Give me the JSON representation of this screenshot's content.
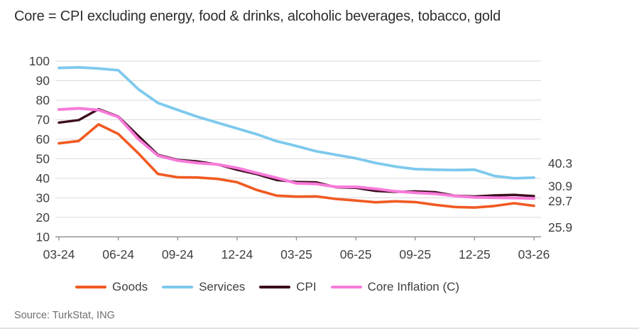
{
  "header": {
    "title": "Core = CPI excluding energy, food & drinks, alcoholic beverages, tobacco, gold"
  },
  "source": {
    "text": "Source: TurkStat, ING"
  },
  "colors": {
    "goods": "#f05a22",
    "services": "#7ec9ed",
    "cpi": "#3c0d1f",
    "core": "#f87bd9",
    "grid": "#d9d9d9",
    "axis": "#8c8c8c",
    "text": "#404040"
  },
  "chart_data": {
    "type": "line",
    "title": "Core = CPI excluding energy, food & drinks, alcoholic beverages, tobacco, gold",
    "xlabel": "",
    "ylabel": "",
    "ylim": [
      10,
      100
    ],
    "y_ticks": [
      10,
      20,
      30,
      40,
      50,
      60,
      70,
      80,
      90,
      100
    ],
    "x_tick_labels": [
      "03-24",
      "06-24",
      "09-24",
      "12-24",
      "03-25",
      "06-25",
      "09-25",
      "12-25",
      "03-26"
    ],
    "grid": "horizontal",
    "legend_position": "bottom",
    "x": [
      "03-24",
      "04-24",
      "05-24",
      "06-24",
      "07-24",
      "08-24",
      "09-24",
      "10-24",
      "11-24",
      "12-24",
      "01-25",
      "02-25",
      "03-25",
      "04-25",
      "05-25",
      "06-25",
      "07-25",
      "08-25",
      "09-25",
      "10-25",
      "11-25",
      "12-25",
      "01-26",
      "02-26",
      "03-26"
    ],
    "series": [
      {
        "name": "Goods",
        "color_key": "goods",
        "end_label": "25.9",
        "values": [
          57.9,
          59.1,
          67.6,
          62.7,
          52.9,
          42.2,
          40.5,
          40.4,
          39.7,
          38.0,
          34.0,
          31.1,
          30.6,
          30.7,
          29.4,
          28.6,
          27.7,
          28.2,
          27.8,
          26.4,
          25.3,
          25.0,
          25.8,
          27.2,
          25.9
        ]
      },
      {
        "name": "Services",
        "color_key": "services",
        "end_label": "40.3",
        "values": [
          96.5,
          96.8,
          96.2,
          95.3,
          85.7,
          78.6,
          75.0,
          71.5,
          68.5,
          65.5,
          62.5,
          59.0,
          56.5,
          53.8,
          52.0,
          50.2,
          47.8,
          46.0,
          44.7,
          44.4,
          44.2,
          44.4,
          41.2,
          40.0,
          40.3
        ]
      },
      {
        "name": "CPI",
        "color_key": "cpi",
        "end_label": "30.9",
        "values": [
          68.5,
          69.8,
          75.4,
          71.6,
          61.8,
          52.0,
          49.4,
          48.6,
          47.1,
          44.4,
          42.1,
          39.1,
          38.1,
          37.9,
          35.4,
          35.1,
          33.5,
          33.0,
          33.3,
          32.9,
          31.1,
          30.7,
          31.2,
          31.5,
          30.9
        ]
      },
      {
        "name": "Core Inflation (C)",
        "color_key": "core",
        "end_label": "29.7",
        "values": [
          75.2,
          75.8,
          75.0,
          71.4,
          60.2,
          51.6,
          49.1,
          47.8,
          47.1,
          45.3,
          42.7,
          40.2,
          37.4,
          37.1,
          35.6,
          35.6,
          34.6,
          33.3,
          32.6,
          32.1,
          31.0,
          30.2,
          30.0,
          29.9,
          29.7
        ]
      }
    ]
  }
}
